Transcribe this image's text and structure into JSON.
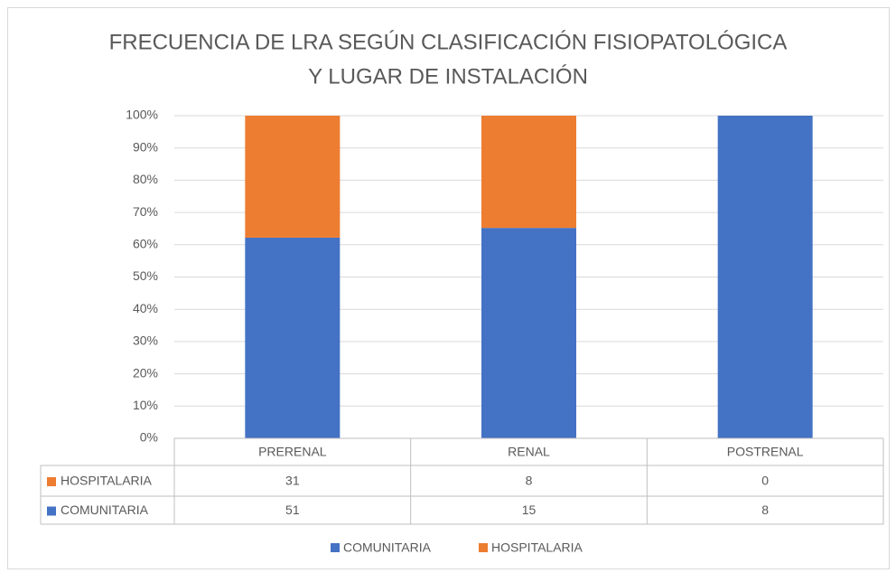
{
  "chart_data": {
    "type": "bar",
    "stacking": "percent",
    "title": [
      "FRECUENCIA DE LRA SEGÚN CLASIFICACIÓN  FISIOPATOLÓGICA",
      "Y LUGAR DE INSTALACIÓN"
    ],
    "categories": [
      "PRERENAL",
      "RENAL",
      "POSTRENAL"
    ],
    "series": [
      {
        "name": "COMUNITARIA",
        "color": "#4472c4",
        "values": [
          51,
          15,
          8
        ]
      },
      {
        "name": "HOSPITALARIA",
        "color": "#ed7d31",
        "values": [
          31,
          8,
          0
        ]
      }
    ],
    "ylim": [
      0,
      100
    ],
    "yticks": [
      {
        "value": 0,
        "label": "0%"
      },
      {
        "value": 10,
        "label": "10%"
      },
      {
        "value": 20,
        "label": "20%"
      },
      {
        "value": 30,
        "label": "30%"
      },
      {
        "value": 40,
        "label": "40%"
      },
      {
        "value": 50,
        "label": "50%"
      },
      {
        "value": 60,
        "label": "60%"
      },
      {
        "value": 70,
        "label": "70%"
      },
      {
        "value": 80,
        "label": "80%"
      },
      {
        "value": 90,
        "label": "90%"
      },
      {
        "value": 100,
        "label": "100%"
      }
    ],
    "grid": true,
    "data_table": true,
    "legend": "bottom"
  }
}
